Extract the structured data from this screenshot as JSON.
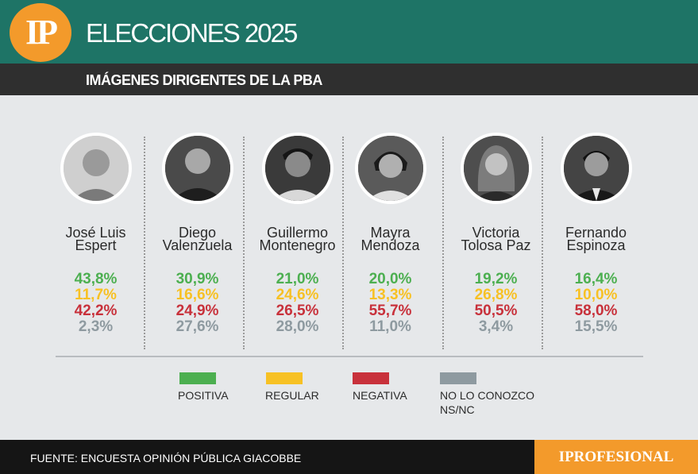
{
  "header": {
    "logo_text": "IP",
    "title": "ELECCIONES 2025",
    "subtitle": "IMÁGENES DIRIGENTES DE LA PBA"
  },
  "chart_data": {
    "type": "table",
    "title": "IMÁGENES DIRIGENTES DE LA PBA",
    "series_names": [
      "POSITIVA",
      "REGULAR",
      "NEGATIVA",
      "NO LO CONOZCO NS/NC"
    ],
    "colors": {
      "positiva": "#4caf50",
      "regular": "#f7c124",
      "negativa": "#c8313b",
      "no_conozco": "#8e9aa0"
    },
    "candidates": [
      {
        "name_line1": "José Luis",
        "name_line2": "Espert",
        "photo": "avatar-jose-luis-espert",
        "positiva": "43,8%",
        "regular": "11,7%",
        "negativa": "42,2%",
        "no_conozco": "2,3%"
      },
      {
        "name_line1": "Diego",
        "name_line2": "Valenzuela",
        "photo": "avatar-diego-valenzuela",
        "positiva": "30,9%",
        "regular": "16,6%",
        "negativa": "24,9%",
        "no_conozco": "27,6%"
      },
      {
        "name_line1": "Guillermo",
        "name_line2": "Montenegro",
        "photo": "avatar-guillermo-montenegro",
        "positiva": "21,0%",
        "regular": "24,6%",
        "negativa": "26,5%",
        "no_conozco": "28,0%"
      },
      {
        "name_line1": "Mayra",
        "name_line2": "Mendoza",
        "photo": "avatar-mayra-mendoza",
        "positiva": "20,0%",
        "regular": "13,3%",
        "negativa": "55,7%",
        "no_conozco": "11,0%"
      },
      {
        "name_line1": "Victoria",
        "name_line2": "Tolosa Paz",
        "photo": "avatar-victoria-tolosa-paz",
        "positiva": "19,2%",
        "regular": "26,8%",
        "negativa": "50,5%",
        "no_conozco": "3,4%"
      },
      {
        "name_line1": "Fernando",
        "name_line2": "Espinoza",
        "photo": "avatar-fernando-espinoza",
        "positiva": "16,4%",
        "regular": "10,0%",
        "negativa": "58,0%",
        "no_conozco": "15,5%"
      }
    ]
  },
  "legend": {
    "positiva": "POSITIVA",
    "regular": "REGULAR",
    "negativa": "NEGATIVA",
    "no_conozco_line1": "NO LO CONOZCO",
    "no_conozco_line2": "NS/NC"
  },
  "footer": {
    "source": "FUENTE: ENCUESTA OPINIÓN PÚBLICA GIACOBBE",
    "brand": "IPROFESIONAL"
  }
}
